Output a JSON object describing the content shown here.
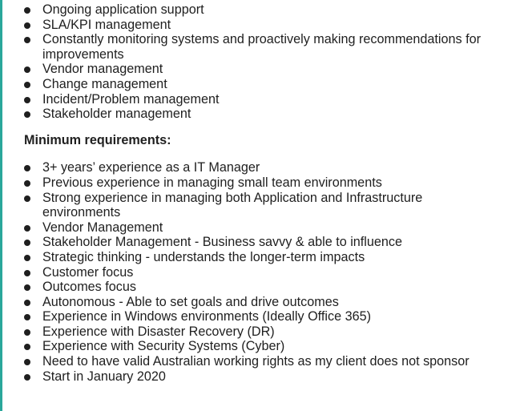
{
  "responsibilities": [
    "Ongoing application support",
    "SLA/KPI management",
    "Constantly monitoring systems and proactively making recommendations for improvements",
    "Vendor management",
    "Change management",
    "Incident/Problem management",
    "Stakeholder management"
  ],
  "requirements_heading": "Minimum requirements:",
  "requirements": [
    "3+ years’ experience as a IT Manager",
    "Previous experience in managing small team environments",
    "Strong experience in managing both Application and Infrastructure environments",
    "Vendor Management",
    "Stakeholder Management - Business savvy & able to influence",
    "Strategic thinking - understands the longer-term impacts",
    "Customer focus",
    "Outcomes focus",
    "Autonomous - Able to set goals and drive outcomes",
    "Experience in Windows environments (Ideally Office 365)",
    "Experience with Disaster Recovery (DR)",
    "Experience with Security Systems (Cyber)",
    "Need to have valid Australian working rights as my client does not sponsor",
    "Start in January 2020"
  ]
}
